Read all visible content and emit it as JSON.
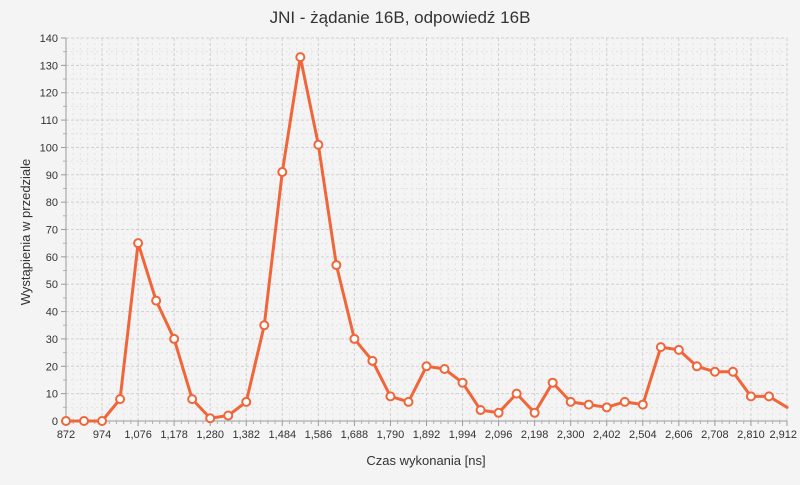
{
  "chart_data": {
    "type": "line",
    "title": "JNI - żądanie 16B, odpowiedź 16B",
    "xlabel": "Czas wykonania [ns]",
    "ylabel": "Wystąpienia w przedziale",
    "xlim": [
      872,
      2912
    ],
    "ylim": [
      0,
      140
    ],
    "x_ticks": [
      "872",
      "974",
      "1,076",
      "1,178",
      "1,280",
      "1,382",
      "1,484",
      "1,586",
      "1,688",
      "1,790",
      "1,892",
      "1,994",
      "2,096",
      "2,198",
      "2,300",
      "2,402",
      "2,504",
      "2,606",
      "2,708",
      "2,810",
      "2,912"
    ],
    "x_tick_values": [
      872,
      974,
      1076,
      1178,
      1280,
      1382,
      1484,
      1586,
      1688,
      1790,
      1892,
      1994,
      2096,
      2198,
      2300,
      2402,
      2504,
      2606,
      2708,
      2810,
      2912
    ],
    "y_ticks": [
      0,
      10,
      20,
      30,
      40,
      50,
      60,
      70,
      80,
      90,
      100,
      110,
      120,
      130,
      140
    ],
    "grid": true,
    "line_color": "#f0663a",
    "series": [
      {
        "x": [
          872,
          923,
          974,
          1025,
          1076,
          1127,
          1178,
          1229,
          1280,
          1331,
          1382,
          1433,
          1484,
          1535,
          1586,
          1637,
          1688,
          1739,
          1790,
          1841,
          1892,
          1943,
          1994,
          2045,
          2096,
          2147,
          2198,
          2249,
          2300,
          2351,
          2402,
          2453,
          2504,
          2555,
          2606,
          2657,
          2708,
          2759,
          2810,
          2861,
          2912
        ],
        "values": [
          0,
          0,
          0,
          8,
          65,
          44,
          30,
          8,
          1,
          2,
          7,
          35,
          91,
          133,
          101,
          57,
          30,
          22,
          9,
          7,
          20,
          19,
          14,
          4,
          3,
          10,
          3,
          14,
          7,
          6,
          5,
          7,
          6,
          27,
          26,
          20,
          18,
          18,
          9,
          9,
          5
        ]
      }
    ]
  }
}
